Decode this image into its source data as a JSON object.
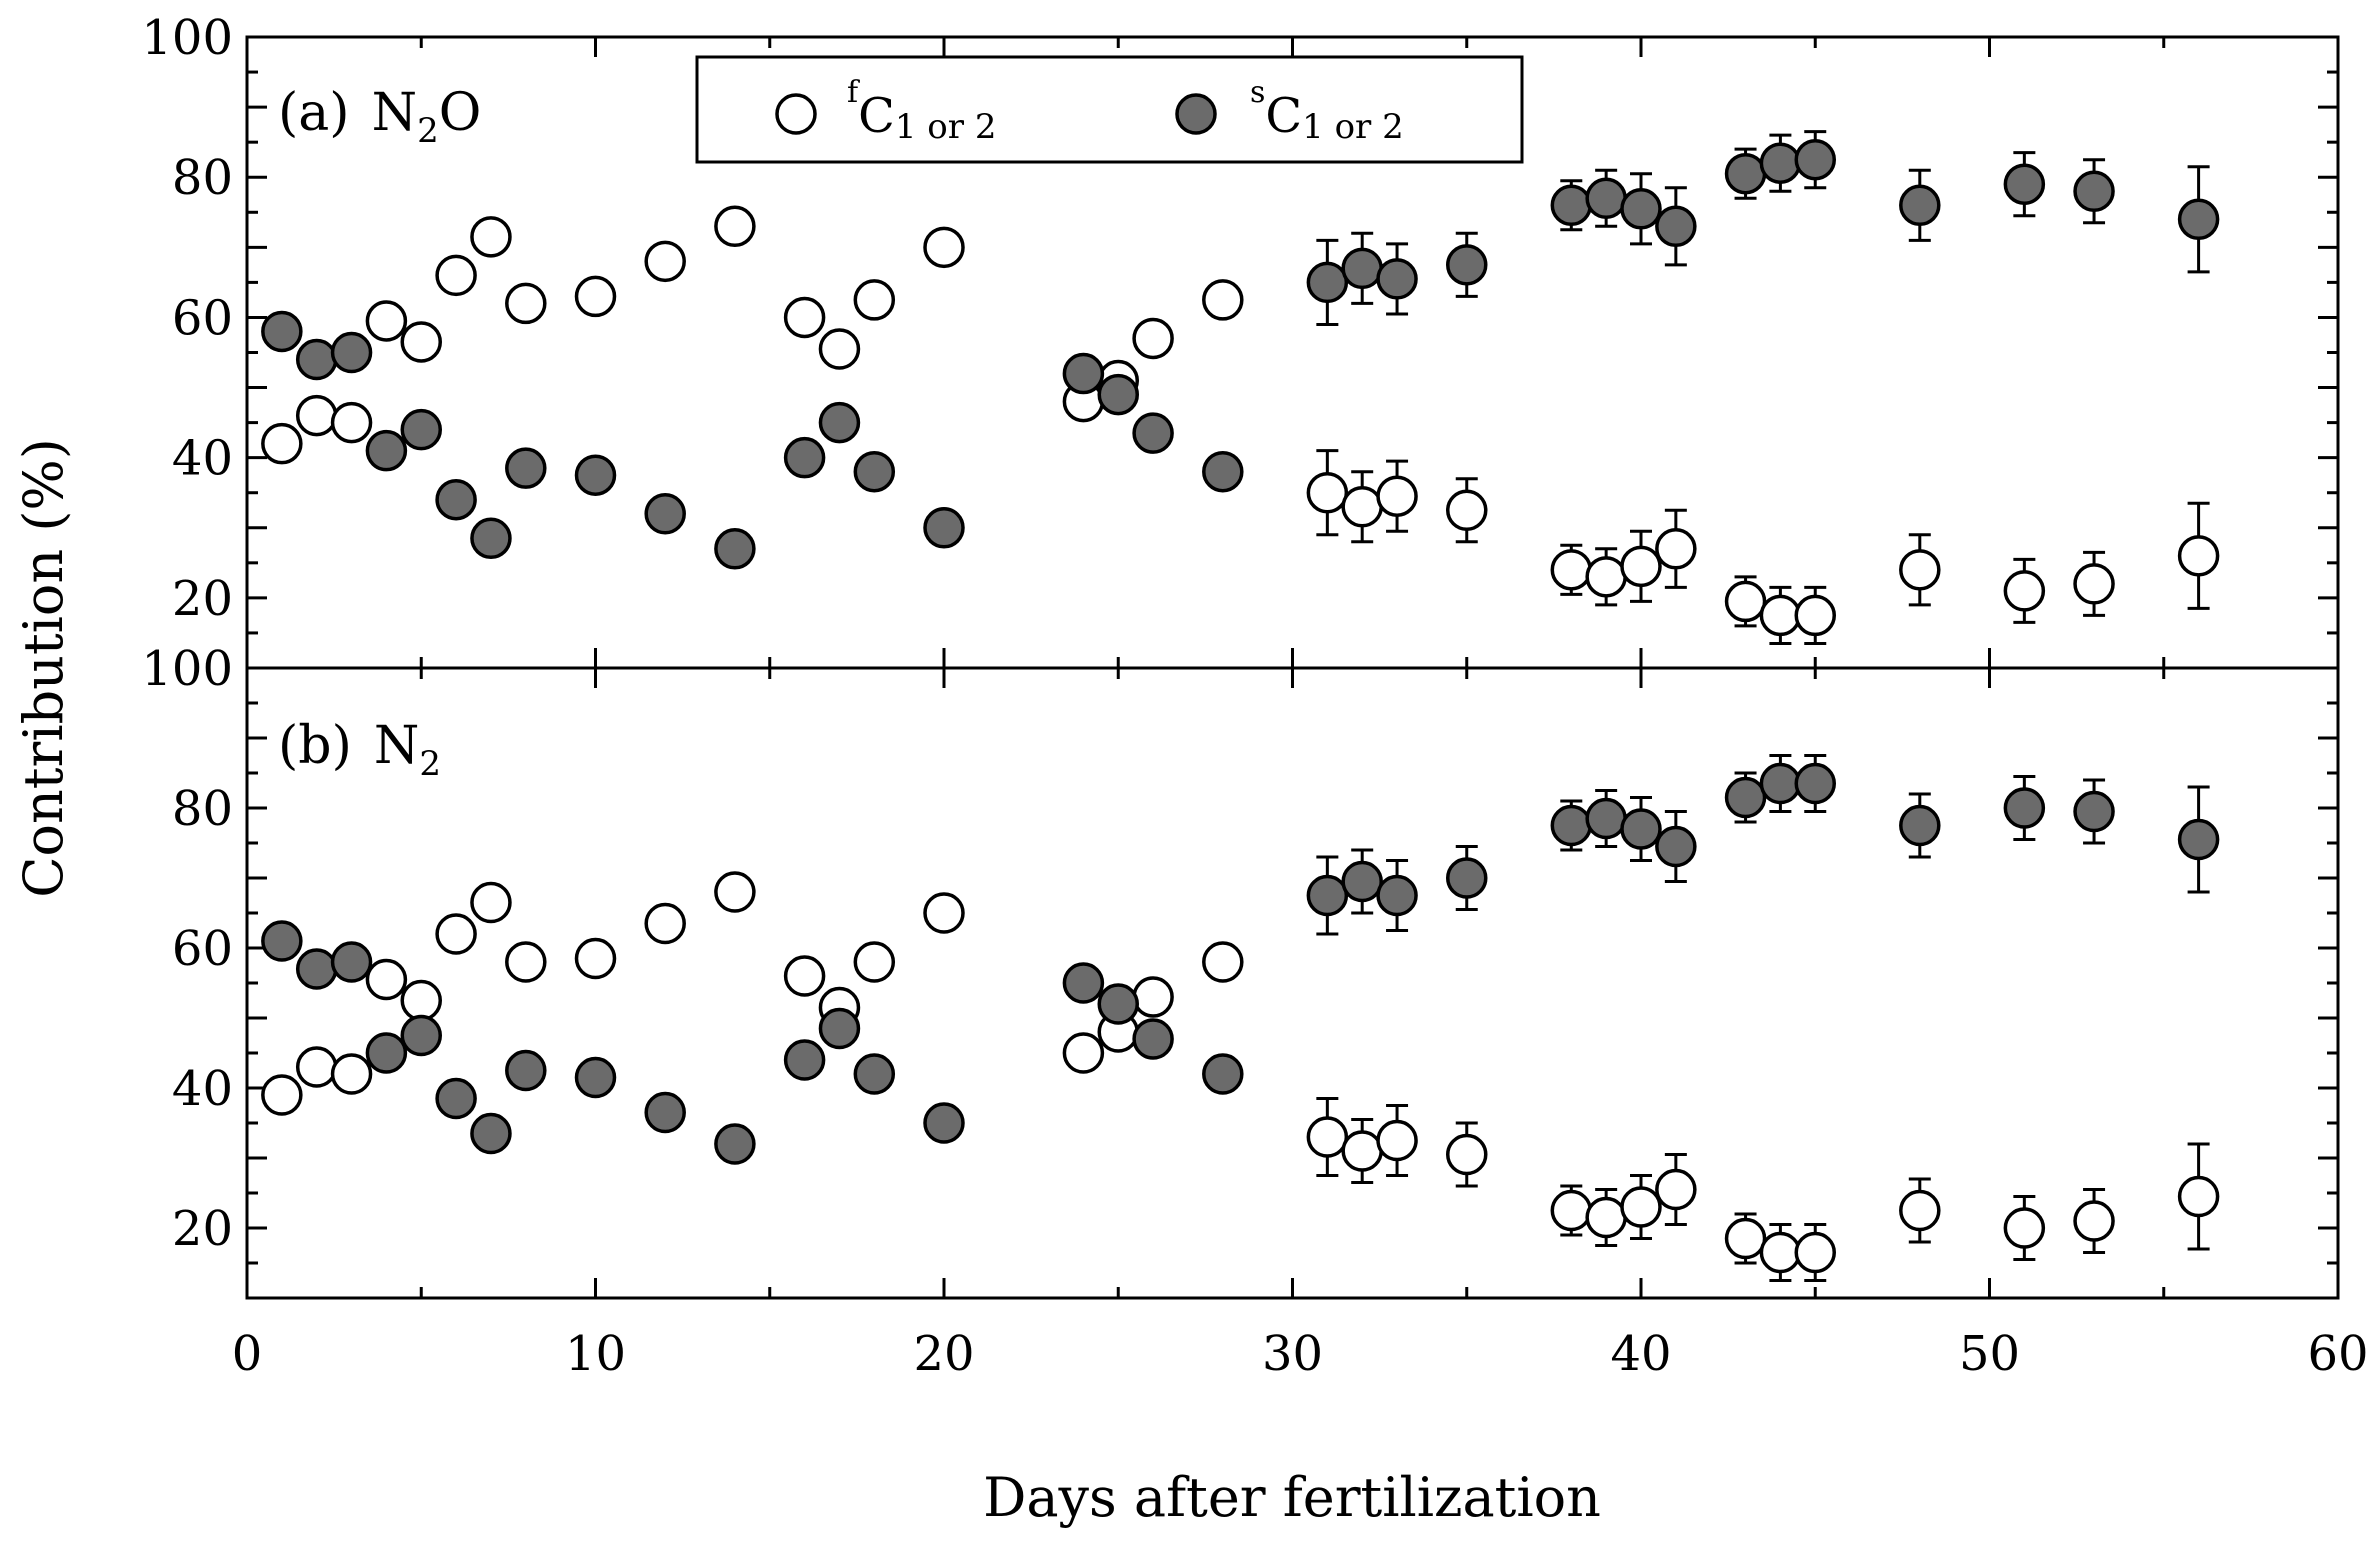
{
  "chart_data": {
    "type": "scatter",
    "xlabel": "Days after fertilization",
    "ylabel": "Contribution (%)",
    "xlim": [
      0,
      60
    ],
    "xticks": [
      0,
      10,
      20,
      30,
      40,
      50,
      60
    ],
    "legend": {
      "position": "top-center",
      "entries": [
        {
          "sup": "f",
          "main": "C",
          "sub": "1 or 2",
          "style": "open"
        },
        {
          "sup": "s",
          "main": "C",
          "sub": "1 or 2",
          "style": "filled"
        }
      ]
    },
    "colors": {
      "filled": "#6b6b6b",
      "open": "#ffffff",
      "stroke": "#000000"
    },
    "panels": [
      {
        "id": "a",
        "label": "(a)",
        "species": "N",
        "species_sub": "2",
        "species_suffix": "O",
        "ylim": [
          10,
          100
        ],
        "yticks": [
          20,
          40,
          60,
          80,
          100
        ],
        "series": [
          {
            "name": "fC1 or 2",
            "style": "open",
            "x": [
              1,
              2,
              3,
              4,
              5,
              6,
              7,
              8,
              10,
              12,
              14,
              16,
              17,
              18,
              20,
              24,
              25,
              26,
              28,
              31,
              32,
              33,
              35,
              38,
              39,
              40,
              41,
              43,
              44,
              45,
              48,
              51,
              53,
              56
            ],
            "y": [
              42,
              46,
              45,
              59.5,
              56.5,
              66,
              71.5,
              62,
              63,
              68,
              73,
              60,
              55.5,
              62.5,
              70,
              48,
              51,
              57,
              62.5,
              35,
              33,
              34.5,
              32.5,
              24,
              23,
              24.5,
              27,
              19.5,
              17.5,
              17.5,
              24,
              21,
              22,
              26
            ],
            "err": [
              2,
              2,
              2,
              2,
              2,
              2,
              2,
              2,
              2,
              2,
              2,
              2,
              2,
              2,
              2,
              2,
              2,
              2,
              2,
              6,
              5,
              5,
              4.5,
              3.5,
              4,
              5,
              5.5,
              3.5,
              4,
              4,
              5,
              4.5,
              4.5,
              7.5
            ]
          },
          {
            "name": "sC1 or 2",
            "style": "filled",
            "x": [
              1,
              2,
              3,
              4,
              5,
              6,
              7,
              8,
              10,
              12,
              14,
              16,
              17,
              18,
              20,
              24,
              25,
              26,
              28,
              31,
              32,
              33,
              35,
              38,
              39,
              40,
              41,
              43,
              44,
              45,
              48,
              51,
              53,
              56
            ],
            "y": [
              58,
              54,
              55,
              41,
              44,
              34,
              28.5,
              38.5,
              37.5,
              32,
              27,
              40,
              45,
              38,
              30,
              52,
              49,
              43.5,
              38,
              65,
              67,
              65.5,
              67.5,
              76,
              77,
              75.5,
              73,
              80.5,
              82,
              82.5,
              76,
              79,
              78,
              74
            ],
            "err": [
              2,
              2,
              2,
              2,
              2,
              2,
              2,
              2,
              2,
              2,
              2,
              2,
              2,
              2,
              2,
              2,
              2,
              2,
              2,
              6,
              5,
              5,
              4.5,
              3.5,
              4,
              5,
              5.5,
              3.5,
              4,
              4,
              5,
              4.5,
              4.5,
              7.5
            ]
          }
        ]
      },
      {
        "id": "b",
        "label": "(b)",
        "species": "N",
        "species_sub": "2",
        "species_suffix": "",
        "ylim": [
          10,
          100
        ],
        "yticks": [
          20,
          40,
          60,
          80,
          100
        ],
        "series": [
          {
            "name": "fC1 or 2",
            "style": "open",
            "x": [
              1,
              2,
              3,
              4,
              5,
              6,
              7,
              8,
              10,
              12,
              14,
              16,
              17,
              18,
              20,
              24,
              25,
              26,
              28,
              31,
              32,
              33,
              35,
              38,
              39,
              40,
              41,
              43,
              44,
              45,
              48,
              51,
              53,
              56
            ],
            "y": [
              39,
              43,
              42,
              55.5,
              52.5,
              62,
              66.5,
              58,
              58.5,
              63.5,
              68,
              56,
              51.5,
              58,
              65,
              45,
              48,
              53,
              58,
              33,
              31,
              32.5,
              30.5,
              22.5,
              21.5,
              23,
              25.5,
              18.5,
              16.5,
              16.5,
              22.5,
              20,
              21,
              24.5
            ],
            "err": [
              2,
              2,
              2,
              2,
              2,
              2,
              2,
              2,
              2,
              2,
              2,
              2,
              2,
              2,
              2,
              2,
              2,
              2,
              2,
              5.5,
              4.5,
              5,
              4.5,
              3.5,
              4,
              4.5,
              5,
              3.5,
              4,
              4,
              4.5,
              4.5,
              4.5,
              7.5
            ]
          },
          {
            "name": "sC1 or 2",
            "style": "filled",
            "x": [
              1,
              2,
              3,
              4,
              5,
              6,
              7,
              8,
              10,
              12,
              14,
              16,
              17,
              18,
              20,
              24,
              25,
              26,
              28,
              31,
              32,
              33,
              35,
              38,
              39,
              40,
              41,
              43,
              44,
              45,
              48,
              51,
              53,
              56
            ],
            "y": [
              61,
              57,
              58,
              45,
              47.5,
              38.5,
              33.5,
              42.5,
              41.5,
              36.5,
              32,
              44,
              48.5,
              42,
              35,
              55,
              52,
              47,
              42,
              67.5,
              69.5,
              67.5,
              70,
              77.5,
              78.5,
              77,
              74.5,
              81.5,
              83.5,
              83.5,
              77.5,
              80,
              79.5,
              75.5
            ],
            "err": [
              2,
              2,
              2,
              2,
              2,
              2,
              2,
              2,
              2,
              2,
              2,
              2,
              2,
              2,
              2,
              2,
              2,
              2,
              2,
              5.5,
              4.5,
              5,
              4.5,
              3.5,
              4,
              4.5,
              5,
              3.5,
              4,
              4,
              4.5,
              4.5,
              4.5,
              7.5
            ]
          }
        ]
      }
    ]
  }
}
